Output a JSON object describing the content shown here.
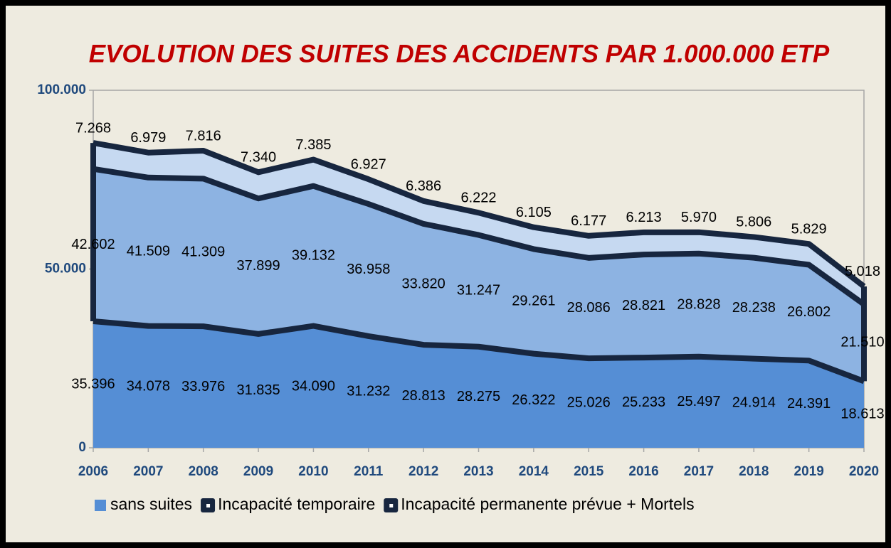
{
  "chart_data": {
    "type": "stacked_area",
    "title": "EVOLUTION DES SUITES DES ACCIDENTS PAR 1.000.000 ETP",
    "categories": [
      "2006",
      "2007",
      "2008",
      "2009",
      "2010",
      "2011",
      "2012",
      "2013",
      "2014",
      "2015",
      "2016",
      "2017",
      "2018",
      "2019",
      "2020"
    ],
    "series": [
      {
        "name": "sans suites",
        "color": "#558ed5",
        "values": [
          35396,
          34078,
          33976,
          31835,
          34090,
          31232,
          28813,
          28275,
          26322,
          25026,
          25233,
          25497,
          24914,
          24391,
          18613
        ],
        "value_labels": [
          "35.396",
          "34.078",
          "33.976",
          "31.835",
          "34.090",
          "31.232",
          "28.813",
          "28.275",
          "26.322",
          "25.026",
          "25.233",
          "25.497",
          "24.914",
          "24.391",
          "18.613"
        ]
      },
      {
        "name": "Incapacité temporaire",
        "color": "#8db3e2",
        "values": [
          42602,
          41509,
          41309,
          37899,
          39132,
          36958,
          33820,
          31247,
          29261,
          28086,
          28821,
          28828,
          28238,
          26802,
          21510
        ],
        "value_labels": [
          "42.602",
          "41.509",
          "41.309",
          "37.899",
          "39.132",
          "36.958",
          "33.820",
          "31.247",
          "29.261",
          "28.086",
          "28.821",
          "28.828",
          "28.238",
          "26.802",
          "21.510"
        ]
      },
      {
        "name": "Incapacité permanente prévue + Mortels",
        "color": "#c6d9f1",
        "values": [
          7268,
          6979,
          7816,
          7340,
          7385,
          6927,
          6386,
          6222,
          6105,
          6177,
          6213,
          5970,
          5806,
          5829,
          5018
        ],
        "value_labels": [
          "7.268",
          "6.979",
          "7.816",
          "7.340",
          "7.385",
          "6.927",
          "6.386",
          "6.222",
          "6.105",
          "6.177",
          "6.213",
          "5.970",
          "5.806",
          "5.829",
          "5.018"
        ]
      }
    ],
    "ylim": [
      0,
      100000
    ],
    "yticks": [
      0,
      {
        "value": 50000,
        "label": "50.000"
      },
      {
        "value": 100000,
        "label": "100.000"
      }
    ],
    "grid": false,
    "legend": "bottom"
  }
}
